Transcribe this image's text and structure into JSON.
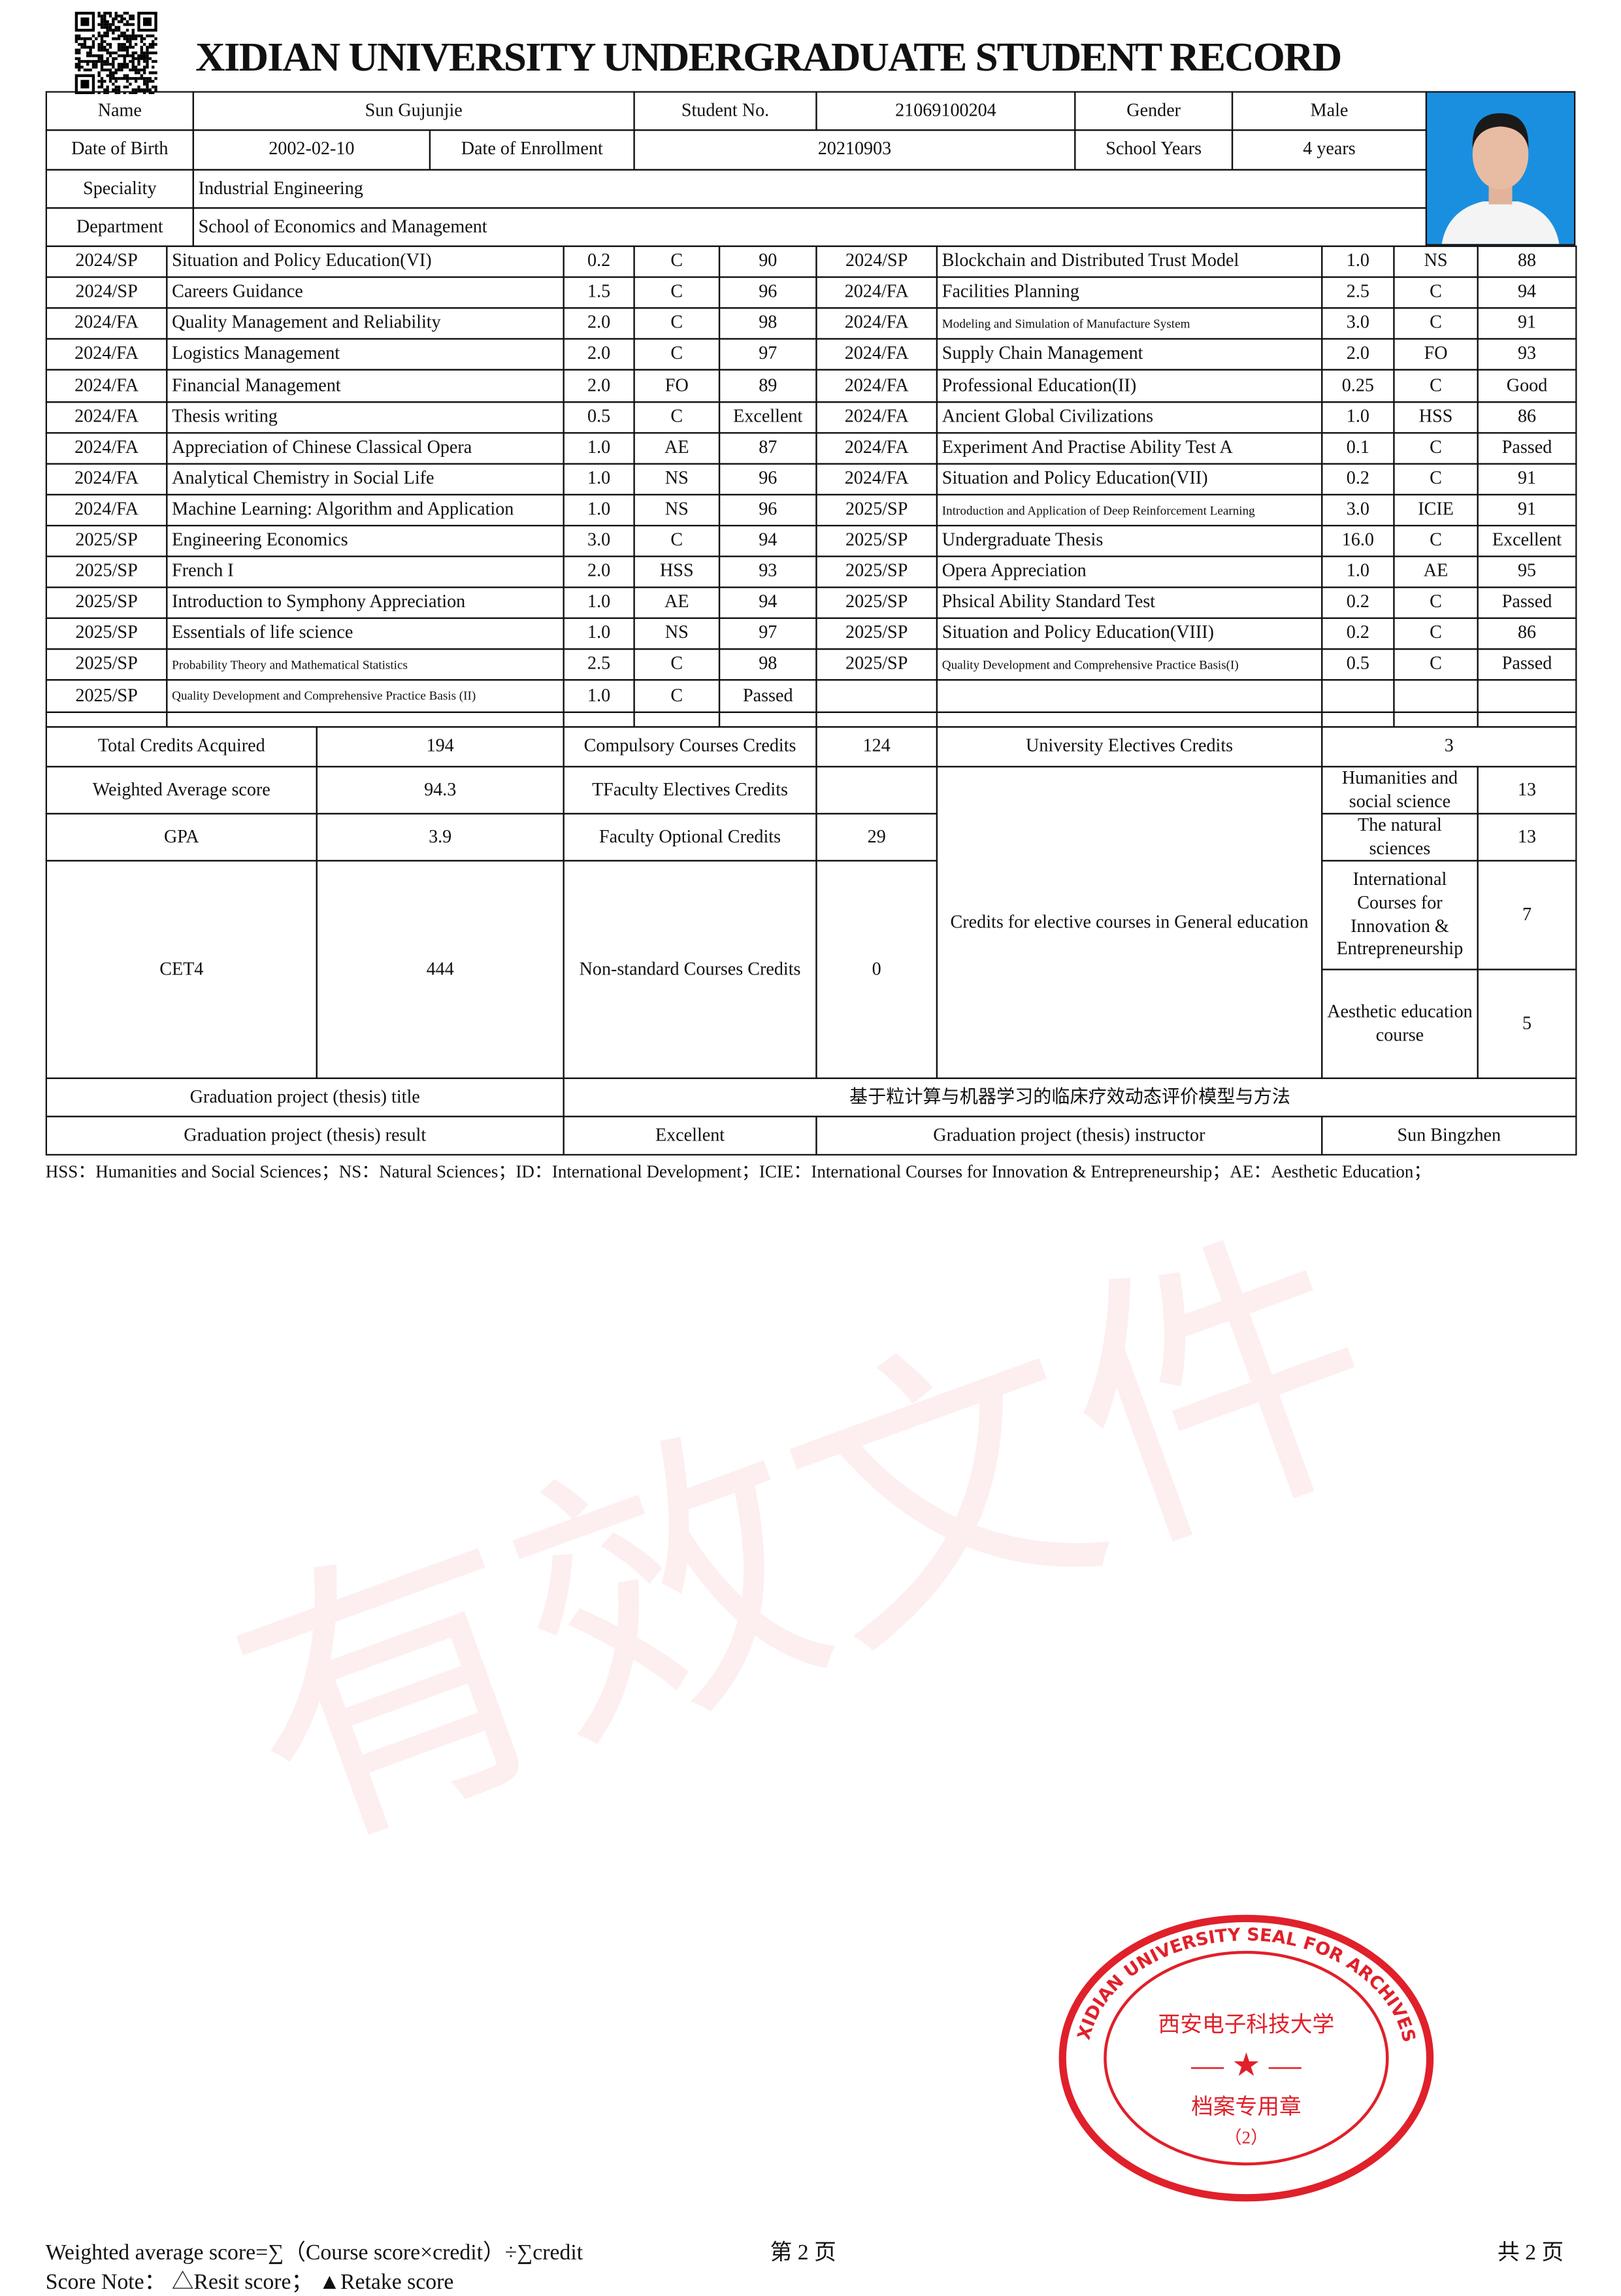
{
  "header": {
    "title": "XIDIAN UNIVERSITY UNDERGRADUATE STUDENT RECORD",
    "qr_icon": "qr-code-icon"
  },
  "student": {
    "name_label": "Name",
    "name": "Sun Gujunjie",
    "student_no_label": "Student No.",
    "student_no": "21069100204",
    "gender_label": "Gender",
    "gender": "Male",
    "dob_label": "Date of Birth",
    "dob": "2002-02-10",
    "enrollment_label": "Date of Enrollment",
    "enrollment": "20210903",
    "years_label": "School Years",
    "years": "4 years",
    "speciality_label": "Speciality",
    "speciality": "Industrial Engineering",
    "department_label": "Department",
    "department": "School of Economics and Management"
  },
  "courses_left": [
    [
      "2024/SP",
      "Situation and Policy Education(VI)",
      "0.2",
      "C",
      "90"
    ],
    [
      "2024/SP",
      "Careers Guidance",
      "1.5",
      "C",
      "96"
    ],
    [
      "2024/FA",
      "Quality Management and Reliability",
      "2.0",
      "C",
      "98"
    ],
    [
      "2024/FA",
      "Logistics Management",
      "2.0",
      "C",
      "97"
    ],
    [
      "2024/FA",
      "Financial Management",
      "2.0",
      "FO",
      "89"
    ],
    [
      "2024/FA",
      "Thesis writing",
      "0.5",
      "C",
      "Excellent"
    ],
    [
      "2024/FA",
      "Appreciation of Chinese Classical Opera",
      "1.0",
      "AE",
      "87"
    ],
    [
      "2024/FA",
      "Analytical Chemistry in Social Life",
      "1.0",
      "NS",
      "96"
    ],
    [
      "2024/FA",
      "Machine Learning: Algorithm and Application",
      "1.0",
      "NS",
      "96"
    ],
    [
      "2025/SP",
      "Engineering Economics",
      "3.0",
      "C",
      "94"
    ],
    [
      "2025/SP",
      "French I",
      "2.0",
      "HSS",
      "93"
    ],
    [
      "2025/SP",
      "Introduction to Symphony Appreciation",
      "1.0",
      "AE",
      "94"
    ],
    [
      "2025/SP",
      "Essentials of life science",
      "1.0",
      "NS",
      "97"
    ],
    [
      "2025/SP",
      "Probability Theory and Mathematical Statistics",
      "2.5",
      "C",
      "98"
    ],
    [
      "2025/SP",
      "Quality Development and Comprehensive Practice Basis (II)",
      "1.0",
      "C",
      "Passed"
    ]
  ],
  "courses_right": [
    [
      "2024/SP",
      "Blockchain and Distributed Trust Model",
      "1.0",
      "NS",
      "88"
    ],
    [
      "2024/FA",
      "Facilities Planning",
      "2.5",
      "C",
      "94"
    ],
    [
      "2024/FA",
      "Modeling and Simulation of Manufacture System",
      "3.0",
      "C",
      "91"
    ],
    [
      "2024/FA",
      "Supply Chain Management",
      "2.0",
      "FO",
      "93"
    ],
    [
      "2024/FA",
      "Professional Education(II)",
      "0.25",
      "C",
      "Good"
    ],
    [
      "2024/FA",
      "Ancient Global Civilizations",
      "1.0",
      "HSS",
      "86"
    ],
    [
      "2024/FA",
      "Experiment And Practise Ability Test A",
      "0.1",
      "C",
      "Passed"
    ],
    [
      "2024/FA",
      "Situation and Policy Education(VII)",
      "0.2",
      "C",
      "91"
    ],
    [
      "2025/SP",
      "Introduction and Application of Deep Reinforcement Learning",
      "3.0",
      "ICIE",
      "91"
    ],
    [
      "2025/SP",
      "Undergraduate Thesis",
      "16.0",
      "C",
      "Excellent"
    ],
    [
      "2025/SP",
      "Opera Appreciation",
      "1.0",
      "AE",
      "95"
    ],
    [
      "2025/SP",
      "Phsical Ability Standard Test",
      "0.2",
      "C",
      "Passed"
    ],
    [
      "2025/SP",
      "Situation and Policy Education(VIII)",
      "0.2",
      "C",
      "86"
    ],
    [
      "2025/SP",
      "Quality Development and Comprehensive Practice Basis(I)",
      "0.5",
      "C",
      "Passed"
    ]
  ],
  "summary": {
    "total_credits_label": "Total Credits Acquired",
    "total_credits": "194",
    "compulsory_label": "Compulsory Courses Credits",
    "compulsory": "124",
    "univ_electives_label": "University Electives Credits",
    "univ_electives": "3",
    "weighted_label": "Weighted Average score",
    "weighted": "94.3",
    "faculty_electives_label": "TFaculty Electives Credits",
    "faculty_electives": "",
    "gpa_label": "GPA",
    "gpa": "3.9",
    "faculty_optional_label": "Faculty Optional Credits",
    "faculty_optional": "29",
    "cet4_label": "CET4",
    "cet4": "444",
    "nonstandard_label": "Non-standard Courses Credits",
    "nonstandard": "0",
    "general_ed_label": "Credits for elective courses in General education",
    "hss_label": "Humanities and social science",
    "hss": "13",
    "ns_label": "The natural sciences",
    "ns": "13",
    "icie_label": "International Courses for Innovation & Entrepreneurship",
    "icie": "7",
    "ae_label": "Aesthetic education course",
    "ae": "5",
    "thesis_title_label": "Graduation project (thesis) title",
    "thesis_title": "基于粒计算与机器学习的临床疗效动态评价模型与方法",
    "thesis_result_label": "Graduation project (thesis) result",
    "thesis_result": "Excellent",
    "instructor_label": "Graduation project (thesis) instructor",
    "instructor": "Sun Bingzhen"
  },
  "legend": "HSS：Humanities and Social Sciences；NS：Natural Sciences；ID：International Development；ICIE：International Courses for Innovation & Entrepreneurship；AE：Aesthetic Education；",
  "footer": {
    "formula": "Weighted average score=∑（Course score×credit）÷∑credit",
    "score_note": "Score Note：  △Resit score；  ▲Retake score",
    "page": "第 2 页",
    "total_pages": "共 2 页"
  },
  "watermark": "有效文件",
  "seal": {
    "outer_text": "XIDIAN UNIVERSITY SEAL FOR ARCHIVES",
    "inner_text": "西安电子科技大学",
    "center_text": "档案专用章",
    "number": "（2）"
  },
  "colors": {
    "seal": "#e0202a",
    "photo_bg": "#1a8fe0",
    "watermark": "#f3c8c8"
  }
}
